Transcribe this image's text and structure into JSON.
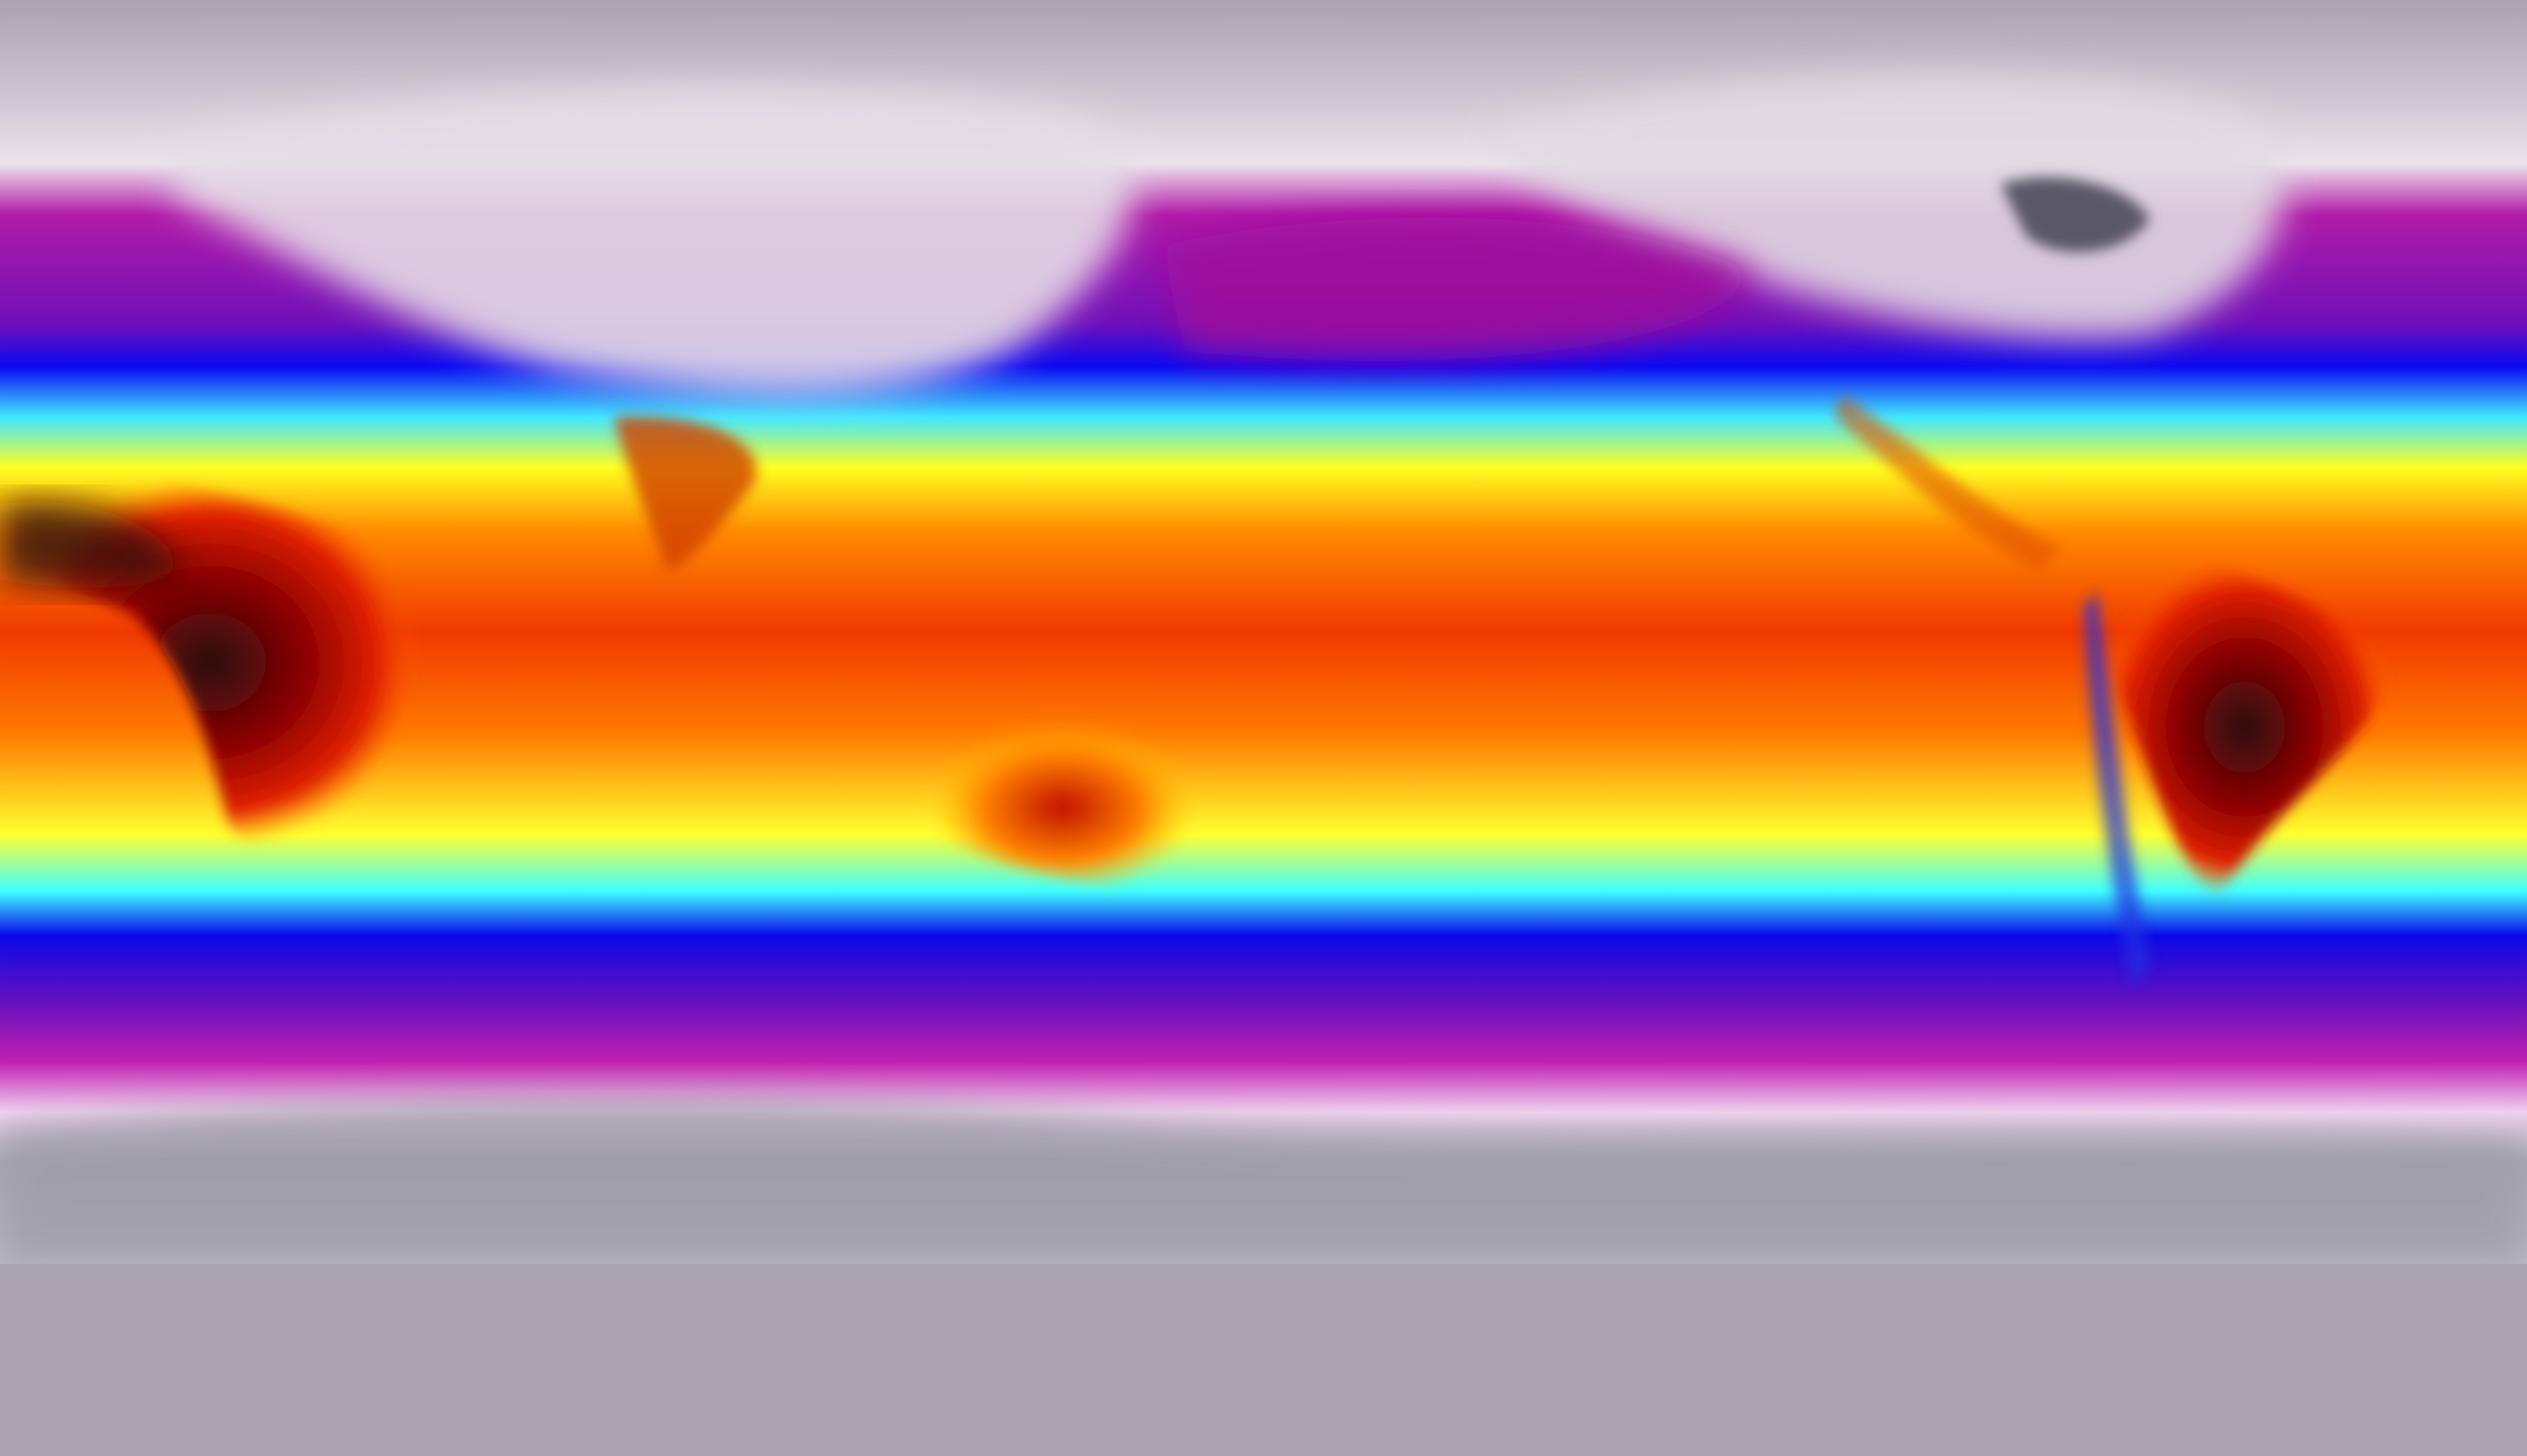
{
  "map": {
    "projection": "equirectangular",
    "colormap": [
      "#a9a3ae",
      "#ece4ec",
      "#b01ca8",
      "#7010b8",
      "#0a0af0",
      "#40e8ff",
      "#ffff20",
      "#ff8c00",
      "#f03a00",
      "#8a0000",
      "#2a2a2a"
    ],
    "colors": {
      "polar": "#b4b0b8",
      "snow": "#ece6ee",
      "cold": "#a0189e",
      "cool": "#0a0af0",
      "mild": "#40e8ff",
      "warm": "#ffff20",
      "hot": "#f03a00",
      "hottest": "#3a0a08"
    }
  }
}
